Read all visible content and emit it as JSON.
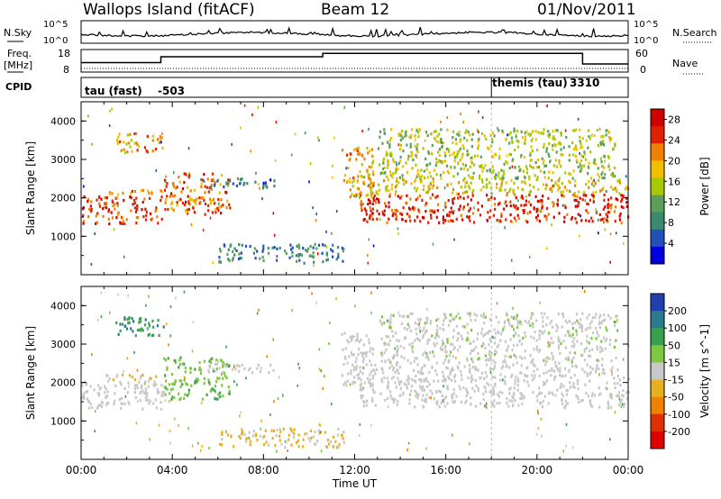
{
  "header": {
    "station": "Wallops Island (fitACF)",
    "beam": "Beam 12",
    "date": "01/Nov/2011"
  },
  "strips": {
    "nsky_label": "N.Sky",
    "nsky_ticks": [
      "10^5",
      "10^0"
    ],
    "nsearch_label": "N.Search",
    "nsearch_ticks": [
      "10^5",
      "10^0"
    ],
    "freq_label": "Freq.",
    "freq_unit": "[MHz]",
    "freq_ticks": [
      "18",
      "8"
    ],
    "nave_label": "Nave",
    "nave_ticks": [
      "60",
      "0"
    ],
    "cpid_label": "CPID",
    "cpid_segments": [
      {
        "name": "tau (fast)",
        "id": "-503",
        "start_hour": 0.0,
        "end_hour": 18.0
      },
      {
        "name": "themis (tau)",
        "id": "3310",
        "start_hour": 18.0,
        "end_hour": 24.0
      }
    ],
    "freq_steps": [
      [
        0,
        12.2
      ],
      [
        3.5,
        12.2
      ],
      [
        3.5,
        14.8
      ],
      [
        10.6,
        14.8
      ],
      [
        10.6,
        16.3
      ],
      [
        22.0,
        16.3
      ],
      [
        22.0,
        11.6
      ],
      [
        24,
        11.6
      ]
    ]
  },
  "chart_data": [
    {
      "type": "heatmap",
      "title": "",
      "xlabel": "Time UT",
      "ylabel": "Slant Range [km]",
      "xlim": [
        "00:00",
        "00:00"
      ],
      "x_ticks": [
        "00:00",
        "04:00",
        "08:00",
        "12:00",
        "16:00",
        "20:00",
        "00:00"
      ],
      "ylim": [
        0,
        4500
      ],
      "y_ticks": [
        "1000",
        "2000",
        "3000",
        "4000"
      ],
      "colorbar": {
        "label": "Power [dB]",
        "ticks": [
          "4",
          "8",
          "12",
          "16",
          "20",
          "24",
          "28"
        ],
        "range": [
          0,
          30
        ],
        "colors": [
          "#0000e0",
          "#2050b8",
          "#3a8a70",
          "#5aa05a",
          "#a8c800",
          "#f0c000",
          "#f08000",
          "#e02000",
          "#d00000"
        ]
      },
      "regions": [
        {
          "t0": 0.0,
          "t1": 3.6,
          "r0": 1300,
          "r1": 2050,
          "value": 26
        },
        {
          "t0": 1.0,
          "t1": 3.6,
          "r0": 2050,
          "r1": 2200,
          "value": 22
        },
        {
          "t0": 1.5,
          "t1": 3.6,
          "r0": 3150,
          "r1": 3700,
          "value": 21
        },
        {
          "t0": 3.6,
          "t1": 6.5,
          "r0": 1550,
          "r1": 2650,
          "value": 24
        },
        {
          "t0": 5.5,
          "t1": 8.5,
          "r0": 2250,
          "r1": 2500,
          "value": 6
        },
        {
          "t0": 6.0,
          "t1": 11.5,
          "r0": 300,
          "r1": 800,
          "value": 8
        },
        {
          "t0": 11.4,
          "t1": 12.8,
          "r0": 1900,
          "r1": 3300,
          "value": 20
        },
        {
          "t0": 12.2,
          "t1": 24.0,
          "r0": 1350,
          "r1": 2100,
          "value": 27
        },
        {
          "t0": 12.6,
          "t1": 24.0,
          "r0": 2100,
          "r1": 2500,
          "value": 18
        },
        {
          "t0": 13.0,
          "t1": 23.5,
          "r0": 2500,
          "r1": 3800,
          "value": 15
        }
      ]
    },
    {
      "type": "heatmap",
      "title": "",
      "xlabel": "Time UT",
      "ylabel": "Slant Range [km]",
      "xlim": [
        "00:00",
        "00:00"
      ],
      "x_ticks": [
        "00:00",
        "04:00",
        "08:00",
        "12:00",
        "16:00",
        "20:00",
        "00:00"
      ],
      "ylim": [
        0,
        4500
      ],
      "y_ticks": [
        "1000",
        "2000",
        "3000",
        "4000"
      ],
      "colorbar": {
        "label": "Velocity [m s^-1]",
        "ticks": [
          "200",
          "100",
          "50",
          "15",
          "-15",
          "-50",
          "-100",
          "-200"
        ],
        "range": [
          -250,
          250
        ],
        "colors": [
          "#2040b0",
          "#2a7a90",
          "#3aa050",
          "#7cc840",
          "#c8c8c8",
          "#e8b020",
          "#f08000",
          "#e03000",
          "#e00000"
        ]
      },
      "regions": [
        {
          "t0": 0.0,
          "t1": 3.6,
          "r0": 1300,
          "r1": 2050,
          "value": 0
        },
        {
          "t0": 1.0,
          "t1": 3.6,
          "r0": 2050,
          "r1": 2200,
          "value": -30
        },
        {
          "t0": 1.5,
          "t1": 3.6,
          "r0": 3150,
          "r1": 3700,
          "value": 150
        },
        {
          "t0": 3.6,
          "t1": 6.5,
          "r0": 1550,
          "r1": 2650,
          "value": 80
        },
        {
          "t0": 5.5,
          "t1": 8.5,
          "r0": 2250,
          "r1": 2500,
          "value": 0
        },
        {
          "t0": 6.0,
          "t1": 11.5,
          "r0": 300,
          "r1": 800,
          "value": -40
        },
        {
          "t0": 11.4,
          "t1": 12.8,
          "r0": 1900,
          "r1": 3300,
          "value": 0
        },
        {
          "t0": 12.2,
          "t1": 24.0,
          "r0": 1350,
          "r1": 2100,
          "value": 0
        },
        {
          "t0": 12.6,
          "t1": 24.0,
          "r0": 2100,
          "r1": 2500,
          "value": 0
        },
        {
          "t0": 13.0,
          "t1": 23.5,
          "r0": 2500,
          "r1": 3800,
          "value": 10
        }
      ]
    }
  ]
}
